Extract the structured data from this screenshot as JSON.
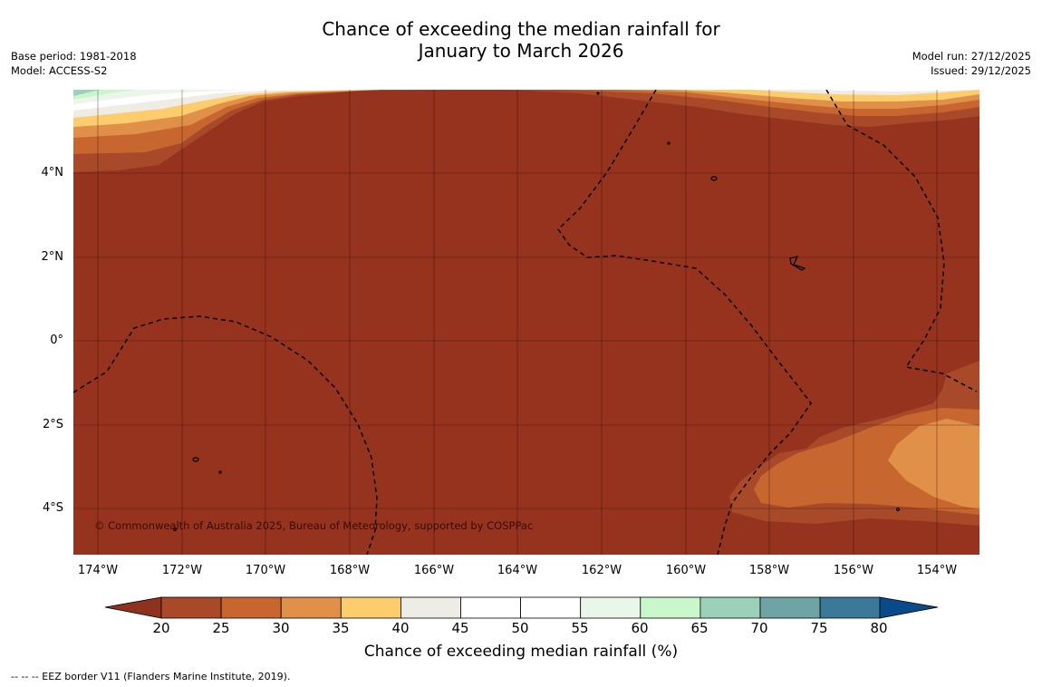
{
  "title": {
    "line1": "Chance of exceeding the median rainfall for",
    "line2": "January to March 2026"
  },
  "meta_left": {
    "base_period": "Base period: 1981-2018",
    "model": "Model: ACCESS-S2"
  },
  "meta_right": {
    "model_run": "Model run: 27/12/2025",
    "issued": "Issued: 29/12/2025"
  },
  "map": {
    "lat_labels": [
      "4°N",
      "2°N",
      "0°",
      "2°S",
      "4°S"
    ],
    "lon_labels": [
      "174°W",
      "172°W",
      "170°W",
      "168°W",
      "166°W",
      "164°W",
      "162°W",
      "160°W",
      "158°W",
      "156°W",
      "154°W"
    ],
    "copyright": "© Commonwealth of Australia 2025, Bureau of Meteorology, supported by COSPPac",
    "background_color": "#96331f"
  },
  "colorbar": {
    "ticks": [
      "20",
      "25",
      "30",
      "35",
      "40",
      "45",
      "50",
      "55",
      "60",
      "65",
      "70",
      "75",
      "80"
    ],
    "colors": [
      "#a84a2a",
      "#c8662f",
      "#e09048",
      "#fdcc6c",
      "#efebe5",
      "#ffffff",
      "#ffffff",
      "#eaf6ea",
      "#c9f7cb",
      "#9bd0b9",
      "#6ea4a4",
      "#3c7898"
    ],
    "under_color": "#8f311f",
    "over_color": "#0b4a8a",
    "label": "Chance of exceeding median rainfall (%)"
  },
  "footer": {
    "eez_note": "--  --  -- EEZ border V11 (Flanders Marine Institute, 2019)."
  }
}
